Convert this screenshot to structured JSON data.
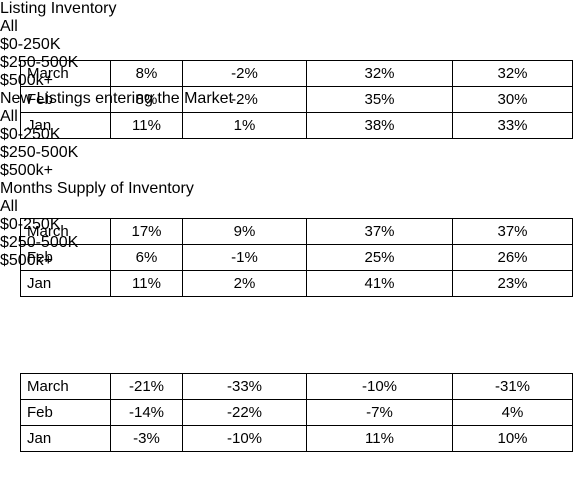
{
  "sections": [
    {
      "title": "Listing Inventory",
      "headers": [
        "All",
        "$0-250K",
        "$250-500K",
        "$500k+"
      ],
      "rows": [
        [
          "March",
          "8%",
          "-2%",
          "32%",
          "32%"
        ],
        [
          "Feb",
          "8%",
          "-2%",
          "35%",
          "30%"
        ],
        [
          "Jan",
          "11%",
          "1%",
          "38%",
          "33%"
        ]
      ]
    },
    {
      "title": "New Listings entering the Market",
      "headers": [
        "All",
        "$0-250K",
        "$250-500K",
        "$500k+"
      ],
      "rows": [
        [
          "March",
          "17%",
          "9%",
          "37%",
          "37%"
        ],
        [
          "Feb",
          "6%",
          "-1%",
          "25%",
          "26%"
        ],
        [
          "Jan",
          "11%",
          "2%",
          "41%",
          "23%"
        ]
      ]
    },
    {
      "title": "Months Supply of Inventory",
      "headers": [
        "All",
        "$0-250K",
        "$250-500K",
        "$500k+"
      ],
      "rows": [
        [
          "March",
          "-21%",
          "-33%",
          "-10%",
          "-31%"
        ],
        [
          "Feb",
          "-14%",
          "-22%",
          "-7%",
          "4%"
        ],
        [
          "Jan",
          "-3%",
          "-10%",
          "11%",
          "10%"
        ]
      ]
    }
  ]
}
